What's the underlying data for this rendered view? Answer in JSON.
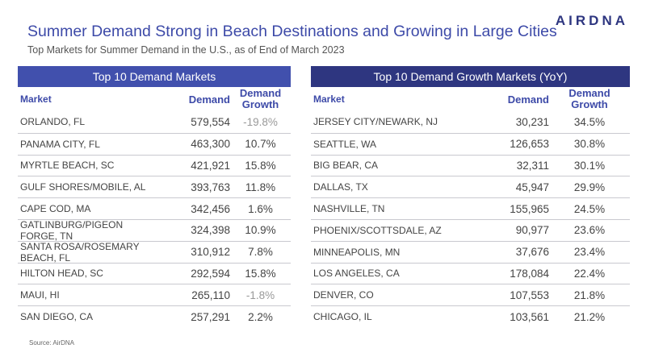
{
  "logo": "AIRDNA",
  "title": "Summer Demand Strong in Beach Destinations and Growing in Large Cities",
  "subtitle": "Top Markets for Summer Demand in the U.S., as of End of March 2023",
  "source": "Source: AirDNA",
  "columns": {
    "market": "Market",
    "demand": "Demand",
    "growth_line1": "Demand",
    "growth_line2": "Growth"
  },
  "left": {
    "title": "Top 10 Demand Markets",
    "rows": [
      {
        "market": "ORLANDO, FL",
        "demand": "579,554",
        "growth": "-19.8%"
      },
      {
        "market": "PANAMA CITY, FL",
        "demand": "463,300",
        "growth": "10.7%"
      },
      {
        "market": "MYRTLE BEACH, SC",
        "demand": "421,921",
        "growth": "15.8%"
      },
      {
        "market": "GULF SHORES/MOBILE, AL",
        "demand": "393,763",
        "growth": "11.8%"
      },
      {
        "market": "CAPE COD, MA",
        "demand": "342,456",
        "growth": "1.6%"
      },
      {
        "market": "GATLINBURG/PIGEON FORGE, TN",
        "demand": "324,398",
        "growth": "10.9%"
      },
      {
        "market": "SANTA ROSA/ROSEMARY BEACH, FL",
        "demand": "310,912",
        "growth": "7.8%"
      },
      {
        "market": "HILTON HEAD, SC",
        "demand": "292,594",
        "growth": "15.8%"
      },
      {
        "market": "MAUI, HI",
        "demand": "265,110",
        "growth": "-1.8%"
      },
      {
        "market": "SAN DIEGO, CA",
        "demand": "257,291",
        "growth": "2.2%"
      }
    ]
  },
  "right": {
    "title": "Top 10 Demand Growth Markets (YoY)",
    "rows": [
      {
        "market": "JERSEY CITY/NEWARK, NJ",
        "demand": "30,231",
        "growth": "34.5%"
      },
      {
        "market": "SEATTLE, WA",
        "demand": "126,653",
        "growth": "30.8%"
      },
      {
        "market": "BIG BEAR, CA",
        "demand": "32,311",
        "growth": "30.1%"
      },
      {
        "market": "DALLAS, TX",
        "demand": "45,947",
        "growth": "29.9%"
      },
      {
        "market": "NASHVILLE, TN",
        "demand": "155,965",
        "growth": "24.5%"
      },
      {
        "market": "PHOENIX/SCOTTSDALE, AZ",
        "demand": "90,977",
        "growth": "23.6%"
      },
      {
        "market": "MINNEAPOLIS, MN",
        "demand": "37,676",
        "growth": "23.4%"
      },
      {
        "market": "LOS ANGELES, CA",
        "demand": "178,084",
        "growth": "22.4%"
      },
      {
        "market": "DENVER, CO",
        "demand": "107,553",
        "growth": "21.8%"
      },
      {
        "market": "CHICAGO, IL",
        "demand": "103,561",
        "growth": "21.2%"
      }
    ]
  }
}
